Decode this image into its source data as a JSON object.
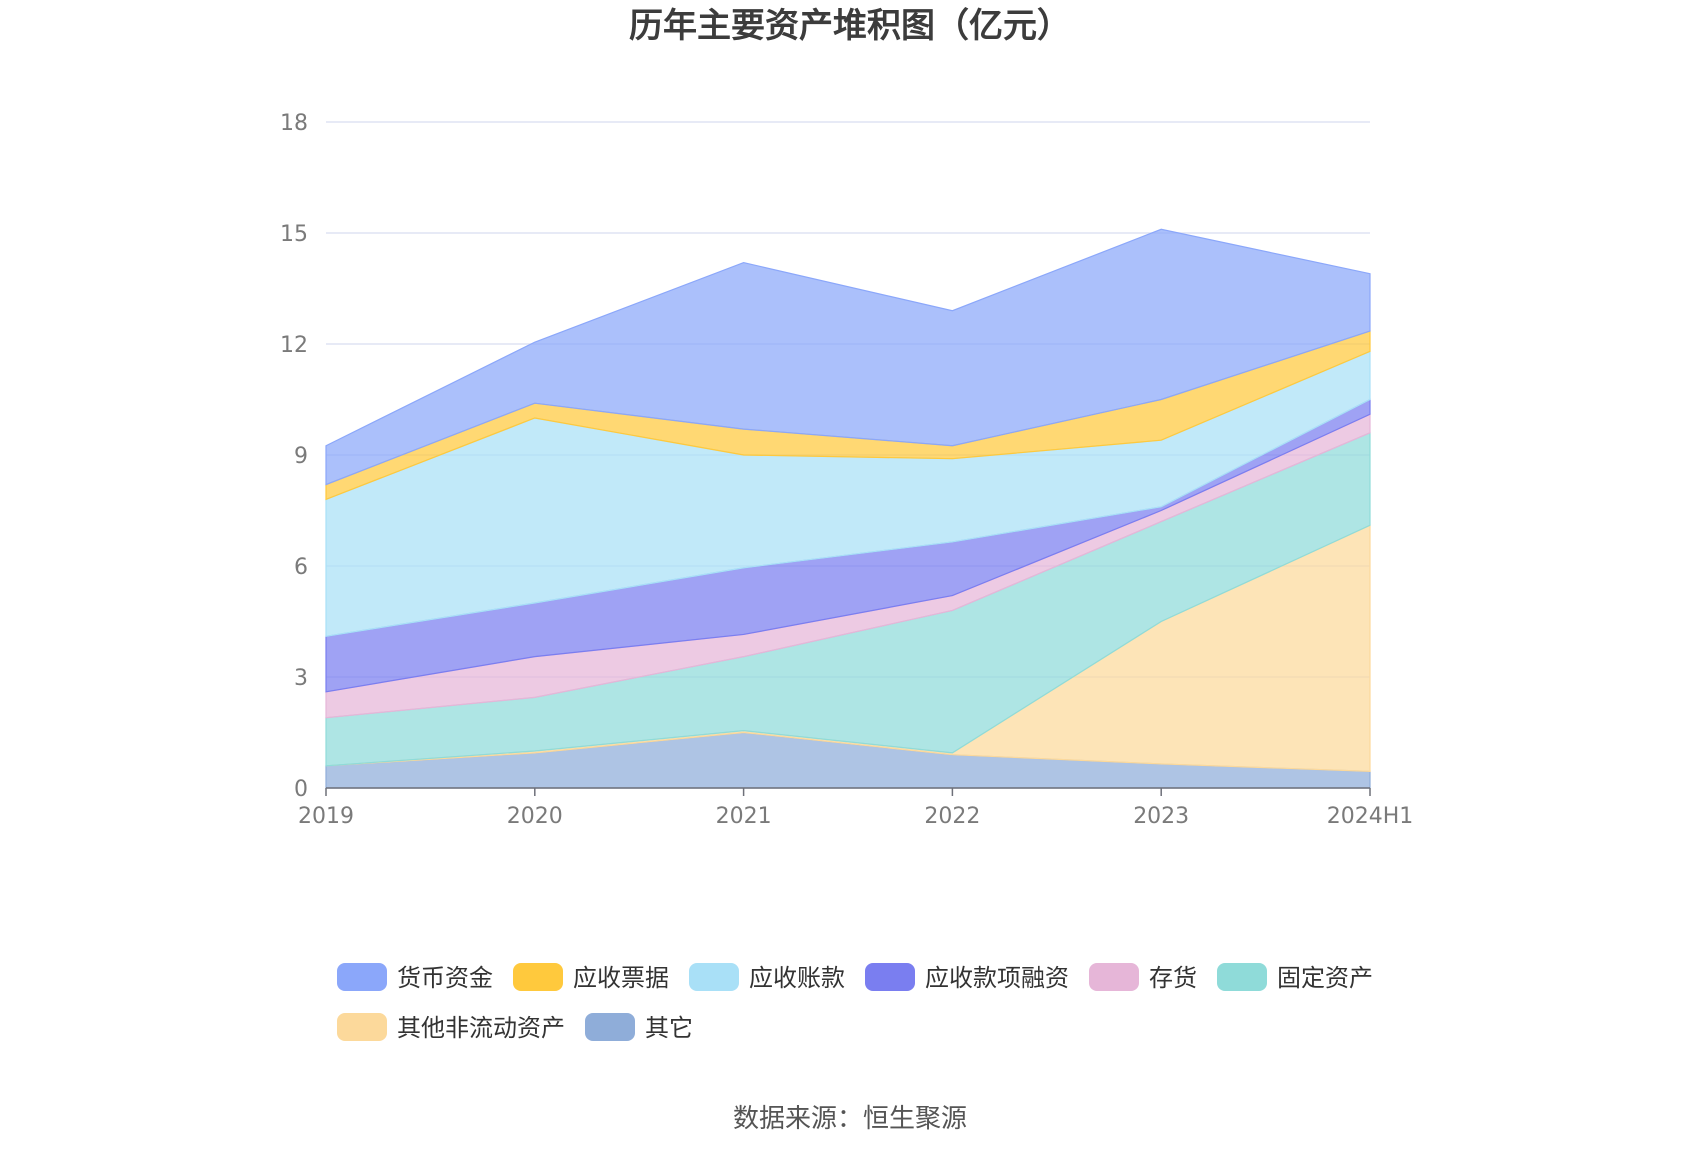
{
  "chart_data": {
    "type": "area",
    "stacked": true,
    "title": "历年主要资产堆积图（亿元）",
    "categories": [
      "2019",
      "2020",
      "2021",
      "2022",
      "2023",
      "2024H1"
    ],
    "ylim": [
      0,
      18
    ],
    "yticks": [
      0,
      3,
      6,
      9,
      12,
      15,
      18
    ],
    "grid": true,
    "legend_position": "bottom",
    "series": [
      {
        "name": "其它",
        "color": "#8fadd9",
        "values": [
          0.6,
          0.95,
          1.5,
          0.9,
          0.65,
          0.45
        ]
      },
      {
        "name": "其他非流动资产",
        "color": "#fcd99b",
        "values": [
          0.0,
          0.05,
          0.05,
          0.05,
          3.85,
          6.65
        ]
      },
      {
        "name": "固定资产",
        "color": "#8fdbd9",
        "values": [
          1.3,
          1.45,
          2.0,
          3.85,
          2.7,
          2.5
        ]
      },
      {
        "name": "存货",
        "color": "#e6b6d8",
        "values": [
          0.7,
          1.1,
          0.6,
          0.4,
          0.3,
          0.5
        ]
      },
      {
        "name": "应收款项融资",
        "color": "#7a7ef0",
        "values": [
          1.5,
          1.45,
          1.8,
          1.45,
          0.1,
          0.4
        ]
      },
      {
        "name": "应收账款",
        "color": "#a9e0f7",
        "values": [
          3.7,
          5.0,
          3.05,
          2.25,
          1.8,
          1.3
        ]
      },
      {
        "name": "应收票据",
        "color": "#ffc93d",
        "values": [
          0.4,
          0.4,
          0.7,
          0.35,
          1.1,
          0.55
        ]
      },
      {
        "name": "货币资金",
        "color": "#8ba7fa",
        "values": [
          1.05,
          1.65,
          4.5,
          3.65,
          4.6,
          1.55
        ]
      }
    ],
    "legend_order": [
      "货币资金",
      "应收票据",
      "应收账款",
      "应收款项融资",
      "存货",
      "固定资产",
      "其他非流动资产",
      "其它"
    ]
  },
  "source": "数据来源：恒生聚源"
}
